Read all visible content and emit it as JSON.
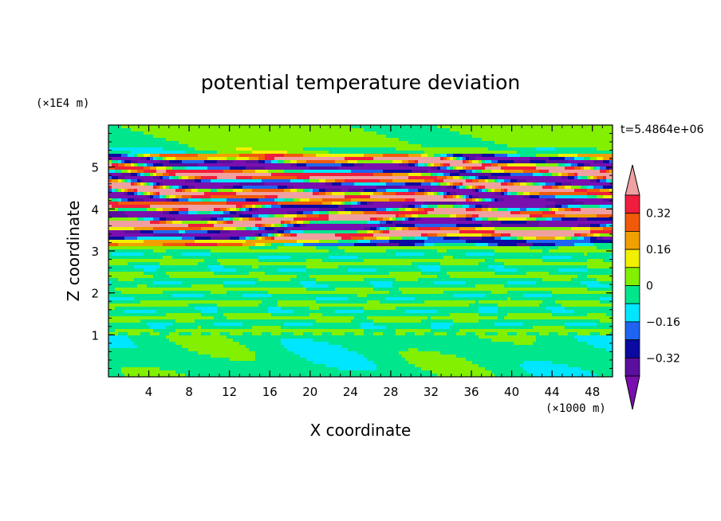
{
  "chart_data": {
    "type": "heatmap",
    "title": "potential temperature deviation",
    "xlabel": "X coordinate",
    "ylabel": "Z coordinate",
    "x_unit": "(×1000 m)",
    "y_unit": "(×1E4 m)",
    "time_label": "t=5.4864e+06",
    "xlim": [
      0,
      50
    ],
    "ylim": [
      0,
      6
    ],
    "x_ticks": [
      4,
      8,
      12,
      16,
      20,
      24,
      28,
      32,
      36,
      40,
      44,
      48
    ],
    "y_ticks": [
      1,
      2,
      3,
      4,
      5
    ],
    "x_minor_step": 1,
    "y_minor_step": 0.2,
    "colorbar": {
      "levels": [
        -0.48,
        -0.4,
        -0.32,
        -0.24,
        -0.16,
        -0.08,
        0,
        0.08,
        0.16,
        0.24,
        0.32,
        0.4
      ],
      "tick_values": [
        0.32,
        0.16,
        0,
        -0.16,
        -0.32
      ],
      "tick_labels": [
        "0.32",
        "0.16",
        "0",
        "−0.16",
        "−0.32"
      ],
      "colors_low_to_high": [
        "#7a0fb0",
        "#5a0f9e",
        "#0a0aa0",
        "#1e64f0",
        "#00e6ff",
        "#00e68c",
        "#82f000",
        "#f0f000",
        "#f0a000",
        "#f05a0a",
        "#f01e3c",
        "#f0a0a0"
      ],
      "extend": "both"
    },
    "field_description": "random-phase layered field; stable green/cyan region z<3.1 (values ~-0.1 to 0.04), strongly stratified banded layer z 3.1-5.35 (amplitude ~0.5) with tilted layers, weak field above"
  }
}
